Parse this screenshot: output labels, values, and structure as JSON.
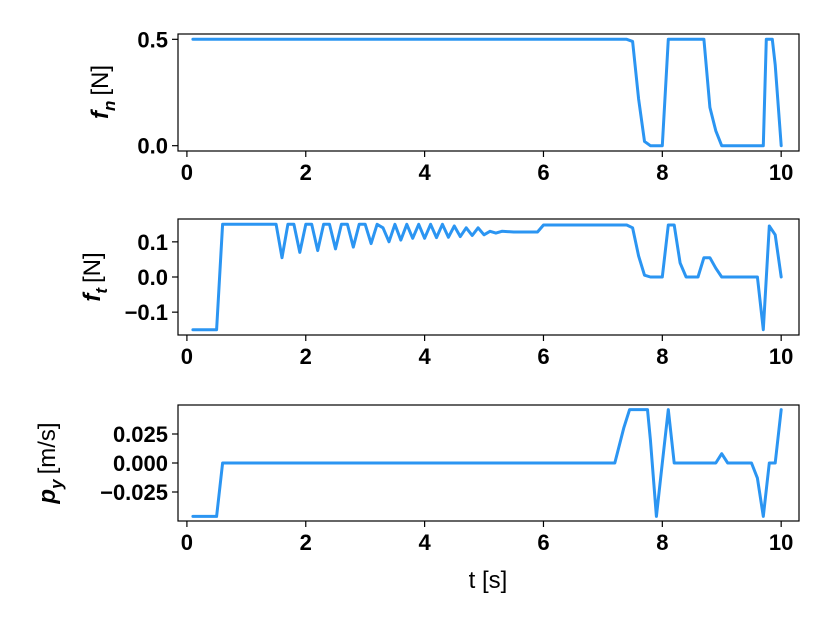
{
  "colors": {
    "line": "#2B95F2",
    "axes": "#000000",
    "background": "#ffffff"
  },
  "chart_data": [
    {
      "type": "line",
      "ylabel_symbol": "f",
      "ylabel_subscript": "n",
      "ylabel_unit": "[N]",
      "xlim": [
        -0.15,
        10.3
      ],
      "ylim": [
        -0.025,
        0.525
      ],
      "xticks": [
        0,
        2,
        4,
        6,
        8,
        10
      ],
      "xtick_labels": [
        "0",
        "2",
        "4",
        "6",
        "8",
        "10"
      ],
      "yticks": [
        0.0,
        0.5
      ],
      "ytick_labels": [
        "0.0",
        "0.5"
      ],
      "series": [
        {
          "x": [
            0.1,
            7.4,
            7.5,
            7.6,
            7.7,
            7.8,
            7.9,
            8.0,
            8.1,
            8.7,
            8.8,
            8.9,
            9.0,
            9.7,
            9.75,
            9.85,
            9.9,
            10.0
          ],
          "y": [
            0.5,
            0.5,
            0.49,
            0.22,
            0.02,
            0.0,
            0.0,
            0.0,
            0.5,
            0.5,
            0.18,
            0.07,
            0.0,
            0.0,
            0.5,
            0.5,
            0.38,
            0.0
          ]
        }
      ]
    },
    {
      "type": "line",
      "ylabel_symbol": "f",
      "ylabel_subscript": "t",
      "ylabel_unit": "[N]",
      "xlim": [
        -0.15,
        10.3
      ],
      "ylim": [
        -0.165,
        0.165
      ],
      "xticks": [
        0,
        2,
        4,
        6,
        8,
        10
      ],
      "xtick_labels": [
        "0",
        "2",
        "4",
        "6",
        "8",
        "10"
      ],
      "yticks": [
        0.1,
        0.0,
        -0.1
      ],
      "ytick_labels": [
        "0.1",
        "0.0",
        "−0.1"
      ],
      "series": [
        {
          "x": [
            0.1,
            0.5,
            0.6,
            1.5,
            1.6,
            1.7,
            1.8,
            1.9,
            2.0,
            2.1,
            2.2,
            2.3,
            2.4,
            2.5,
            2.6,
            2.7,
            2.8,
            2.9,
            3.0,
            3.1,
            3.2,
            3.3,
            3.4,
            3.5,
            3.6,
            3.7,
            3.8,
            3.9,
            4.0,
            4.1,
            4.2,
            4.3,
            4.4,
            4.5,
            4.6,
            4.7,
            4.8,
            4.9,
            5.0,
            5.1,
            5.2,
            5.3,
            5.5,
            5.7,
            5.9,
            6.0,
            7.4,
            7.5,
            7.6,
            7.7,
            7.8,
            7.9,
            8.0,
            8.1,
            8.2,
            8.3,
            8.4,
            8.5,
            8.6,
            8.7,
            8.8,
            8.9,
            9.0,
            9.6,
            9.7,
            9.8,
            9.9,
            10.0
          ],
          "y": [
            -0.15,
            -0.15,
            0.15,
            0.15,
            0.055,
            0.15,
            0.15,
            0.07,
            0.15,
            0.15,
            0.075,
            0.15,
            0.15,
            0.08,
            0.15,
            0.15,
            0.085,
            0.15,
            0.15,
            0.095,
            0.15,
            0.14,
            0.1,
            0.15,
            0.105,
            0.15,
            0.11,
            0.15,
            0.11,
            0.15,
            0.112,
            0.15,
            0.113,
            0.145,
            0.115,
            0.14,
            0.118,
            0.14,
            0.12,
            0.13,
            0.125,
            0.13,
            0.128,
            0.128,
            0.128,
            0.148,
            0.148,
            0.14,
            0.06,
            0.005,
            0.0,
            0.0,
            0.0,
            0.148,
            0.148,
            0.04,
            0.0,
            0.0,
            0.0,
            0.055,
            0.055,
            0.025,
            0.0,
            0.0,
            -0.15,
            0.145,
            0.12,
            0.0
          ]
        }
      ]
    },
    {
      "type": "line",
      "ylabel_symbol": "p",
      "ylabel_subscript": "y",
      "ylabel_unit": "[m/s]",
      "xlim": [
        -0.15,
        10.3
      ],
      "ylim": [
        -0.05,
        0.05
      ],
      "xticks": [
        0,
        2,
        4,
        6,
        8,
        10
      ],
      "xtick_labels": [
        "0",
        "2",
        "4",
        "6",
        "8",
        "10"
      ],
      "yticks": [
        0.025,
        0.0,
        -0.025
      ],
      "ytick_labels": [
        "0.025",
        "0.000",
        "−0.025"
      ],
      "xlabel": "t [s]",
      "series": [
        {
          "x": [
            0.1,
            0.5,
            0.6,
            7.2,
            7.35,
            7.45,
            7.75,
            7.8,
            7.9,
            8.0,
            8.1,
            8.2,
            8.9,
            9.0,
            9.1,
            9.5,
            9.6,
            9.7,
            9.8,
            9.9,
            10.0
          ],
          "y": [
            -0.046,
            -0.046,
            0.0,
            0.0,
            0.03,
            0.046,
            0.046,
            0.02,
            -0.046,
            0.0,
            0.046,
            0.0,
            0.0,
            0.008,
            0.0,
            0.0,
            -0.013,
            -0.046,
            0.0,
            0.0,
            0.046
          ]
        }
      ]
    }
  ]
}
